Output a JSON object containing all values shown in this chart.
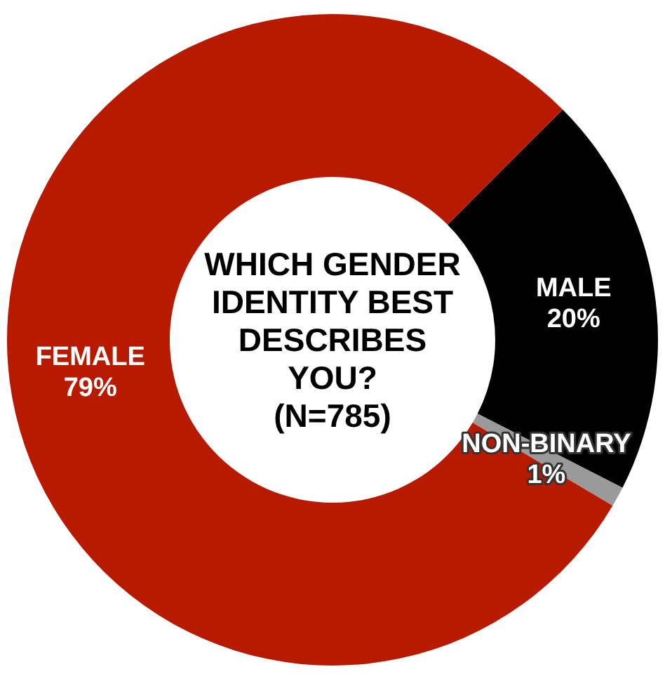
{
  "chart_data": {
    "type": "donut",
    "title": "WHICH GENDER IDENTITY BEST DESCRIBES YOU?",
    "subtitle": "(N=785)",
    "categories": [
      "MALE",
      "NON-BINARY",
      "FEMALE"
    ],
    "values": [
      20,
      1,
      79
    ],
    "colors": [
      "#000000",
      "#9a9a9a",
      "#b81a00"
    ],
    "value_labels": [
      "20%",
      "1%",
      "79%"
    ],
    "legend": false
  }
}
